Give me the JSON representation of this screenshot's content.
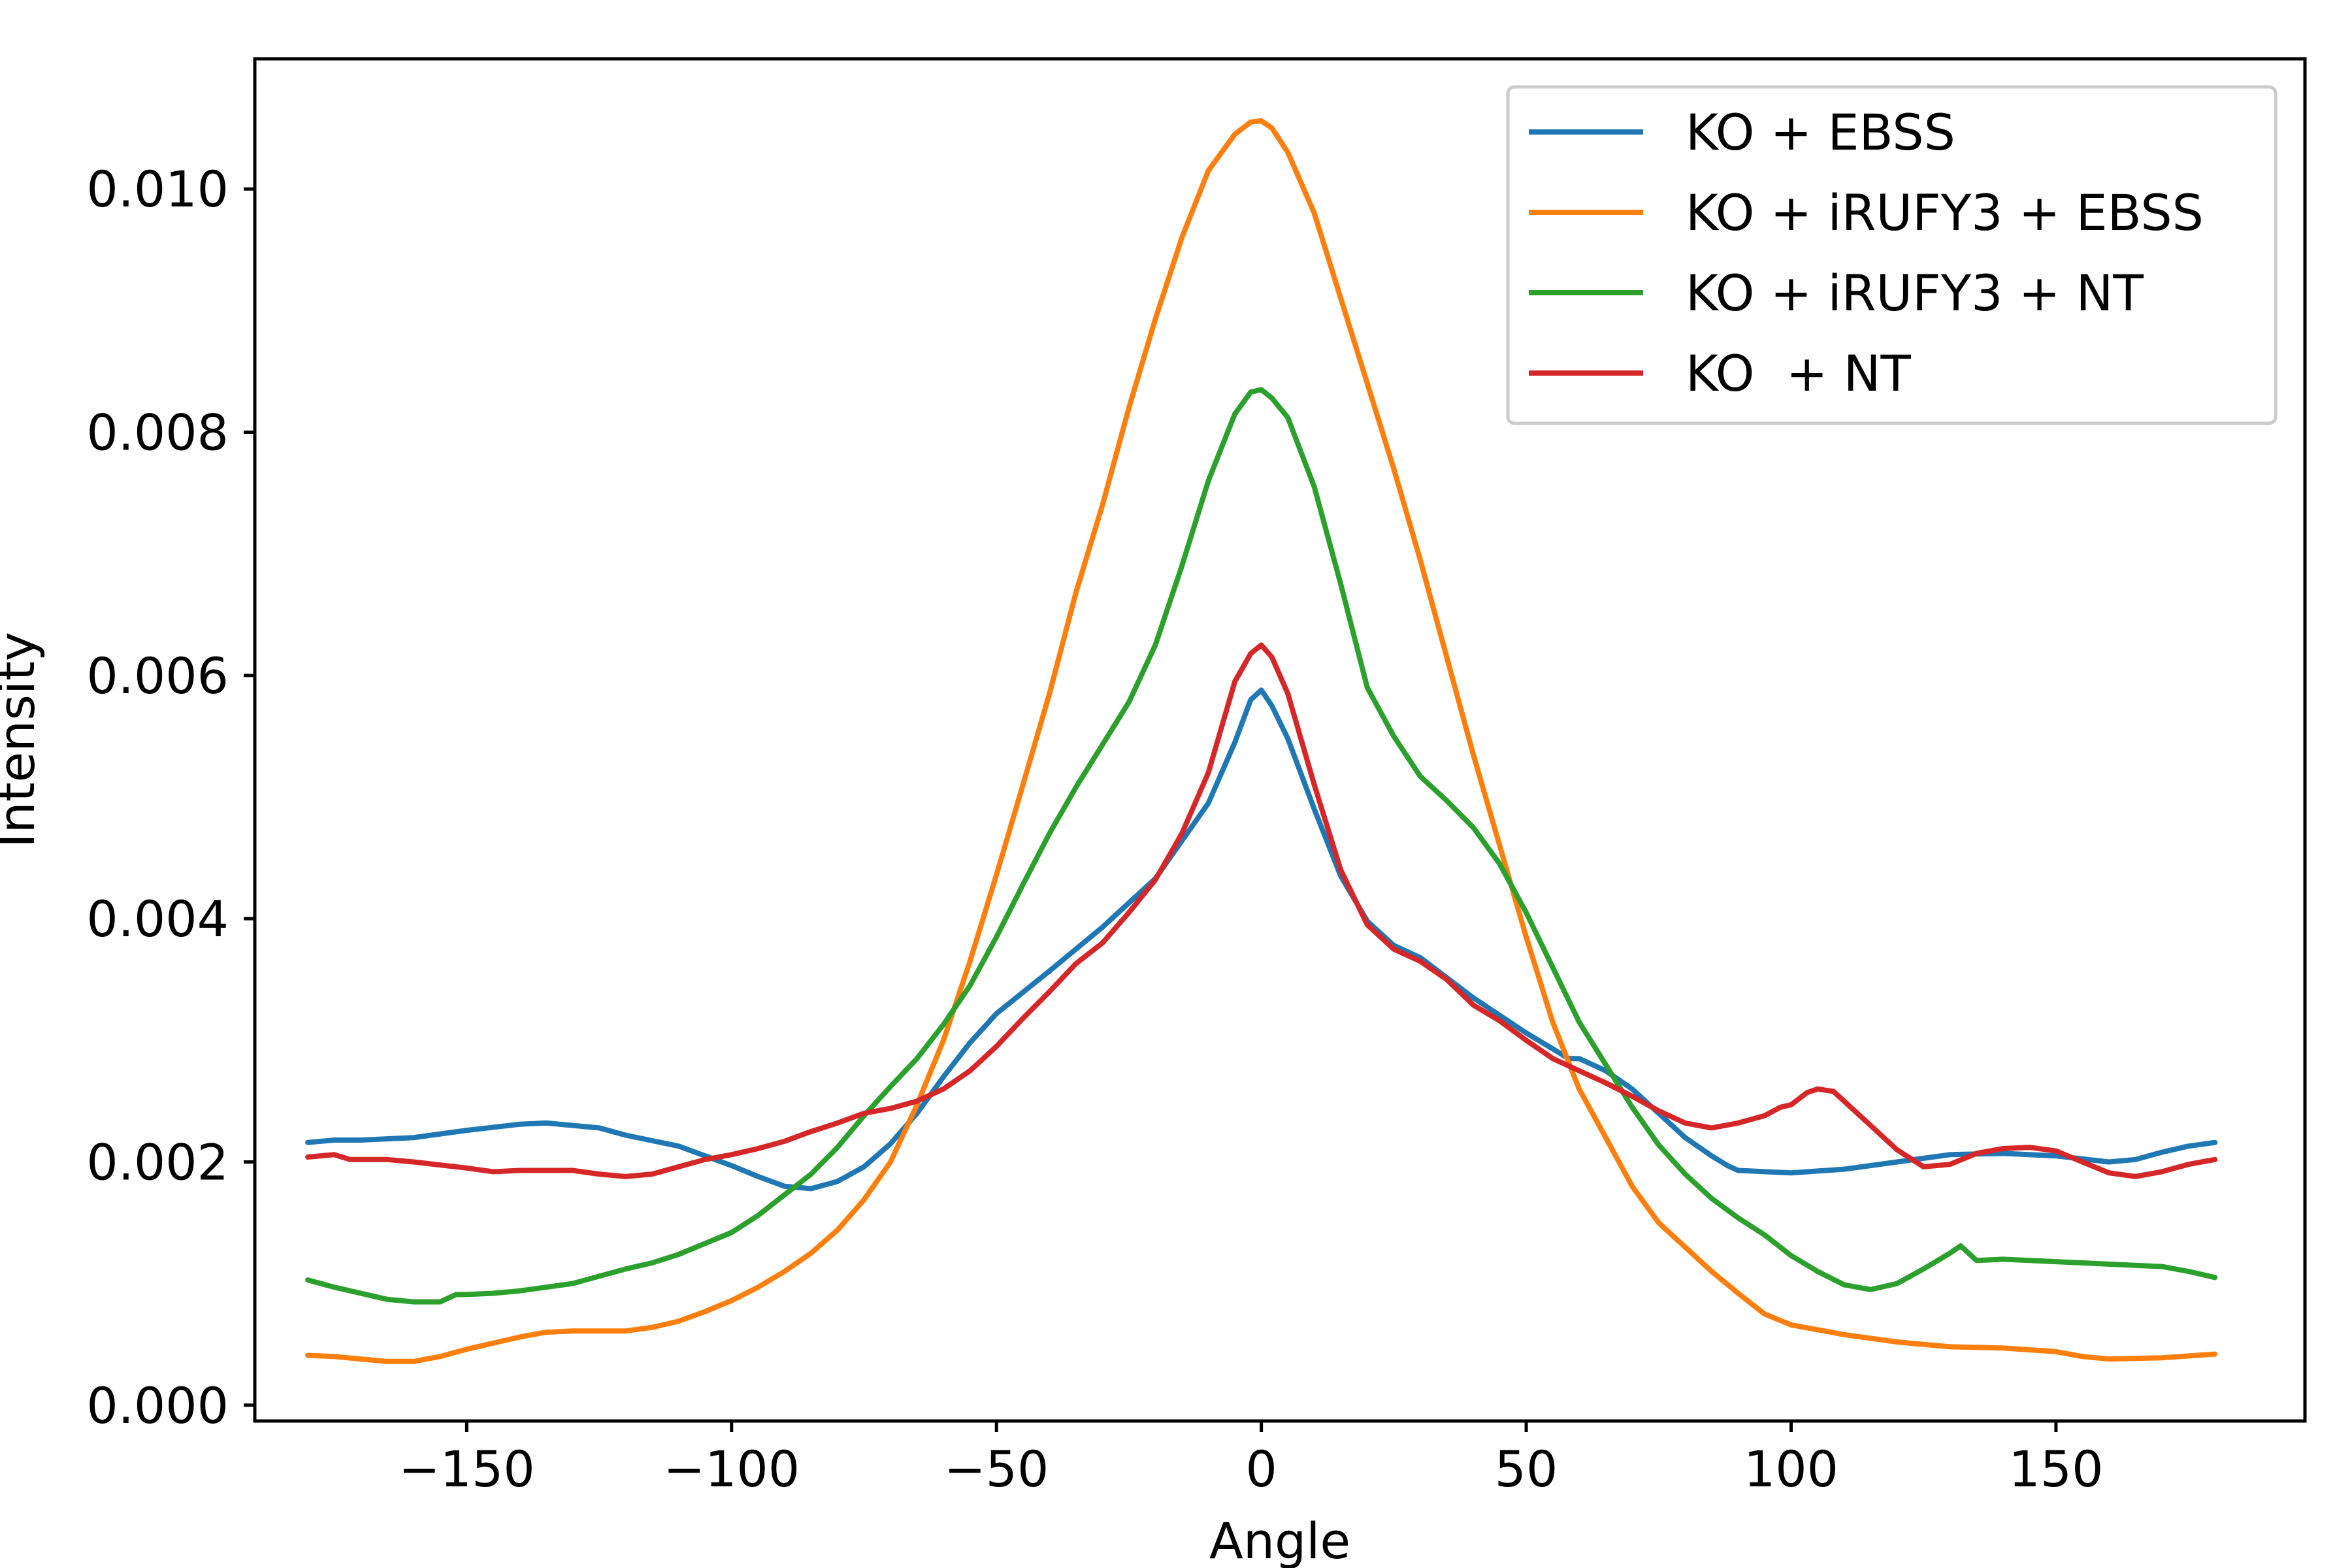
{
  "chart_data": {
    "type": "line",
    "title": "",
    "xlabel": "Angle",
    "ylabel": "Intensity",
    "xlim": [
      -190,
      197
    ],
    "ylim": [
      -0.00013,
      0.01107
    ],
    "x_ticks": [
      -150,
      -100,
      -50,
      0,
      50,
      100,
      150
    ],
    "x_tick_labels": [
      "−150",
      "−100",
      "−50",
      "0",
      "50",
      "100",
      "150"
    ],
    "y_ticks": [
      0.0,
      0.002,
      0.004,
      0.006,
      0.008,
      0.01
    ],
    "y_tick_labels": [
      "0.000",
      "0.002",
      "0.004",
      "0.006",
      "0.008",
      "0.010"
    ],
    "grid": false,
    "legend_position": "top-right",
    "series": [
      {
        "name": "KO + EBSS",
        "color": "#1f77b4",
        "points": [
          [
            -180,
            0.00216
          ],
          [
            -175,
            0.00218
          ],
          [
            -170,
            0.00218
          ],
          [
            -165,
            0.00219
          ],
          [
            -160,
            0.0022
          ],
          [
            -150,
            0.00226
          ],
          [
            -140,
            0.00231
          ],
          [
            -135,
            0.00232
          ],
          [
            -125,
            0.00228
          ],
          [
            -120,
            0.00222
          ],
          [
            -110,
            0.00213
          ],
          [
            -100,
            0.00197
          ],
          [
            -95,
            0.00188
          ],
          [
            -90,
            0.0018
          ],
          [
            -85,
            0.00178
          ],
          [
            -80,
            0.00184
          ],
          [
            -75,
            0.00196
          ],
          [
            -70,
            0.00215
          ],
          [
            -65,
            0.0024
          ],
          [
            -60,
            0.0027
          ],
          [
            -55,
            0.00298
          ],
          [
            -50,
            0.00322
          ],
          [
            -40,
            0.00357
          ],
          [
            -30,
            0.00393
          ],
          [
            -20,
            0.00433
          ],
          [
            -10,
            0.00495
          ],
          [
            -5,
            0.00545
          ],
          [
            -2,
            0.0058
          ],
          [
            0,
            0.00588
          ],
          [
            2,
            0.00575
          ],
          [
            5,
            0.00548
          ],
          [
            10,
            0.0049
          ],
          [
            15,
            0.00435
          ],
          [
            20,
            0.00398
          ],
          [
            25,
            0.00378
          ],
          [
            30,
            0.00368
          ],
          [
            40,
            0.00335
          ],
          [
            50,
            0.00306
          ],
          [
            55,
            0.00293
          ],
          [
            58,
            0.00285
          ],
          [
            60,
            0.00285
          ],
          [
            65,
            0.00275
          ],
          [
            70,
            0.0026
          ],
          [
            75,
            0.0024
          ],
          [
            80,
            0.0022
          ],
          [
            85,
            0.00205
          ],
          [
            88,
            0.00197
          ],
          [
            90,
            0.00193
          ],
          [
            100,
            0.00191
          ],
          [
            110,
            0.00194
          ],
          [
            120,
            0.002
          ],
          [
            130,
            0.00206
          ],
          [
            140,
            0.00207
          ],
          [
            150,
            0.00205
          ],
          [
            160,
            0.002
          ],
          [
            165,
            0.00202
          ],
          [
            170,
            0.00208
          ],
          [
            175,
            0.00213
          ],
          [
            180,
            0.00216
          ]
        ]
      },
      {
        "name": "KO + iRUFY3 + EBSS",
        "color": "#ff7f0e",
        "points": [
          [
            -180,
            0.00041
          ],
          [
            -175,
            0.0004
          ],
          [
            -170,
            0.00038
          ],
          [
            -165,
            0.00036
          ],
          [
            -160,
            0.00036
          ],
          [
            -155,
            0.0004
          ],
          [
            -150,
            0.00046
          ],
          [
            -140,
            0.00056
          ],
          [
            -135,
            0.0006
          ],
          [
            -130,
            0.00061
          ],
          [
            -125,
            0.00061
          ],
          [
            -120,
            0.00061
          ],
          [
            -115,
            0.00064
          ],
          [
            -110,
            0.00069
          ],
          [
            -105,
            0.00077
          ],
          [
            -100,
            0.00086
          ],
          [
            -95,
            0.00097
          ],
          [
            -90,
            0.0011
          ],
          [
            -85,
            0.00125
          ],
          [
            -80,
            0.00144
          ],
          [
            -75,
            0.00169
          ],
          [
            -70,
            0.002
          ],
          [
            -65,
            0.00247
          ],
          [
            -60,
            0.003
          ],
          [
            -55,
            0.00365
          ],
          [
            -50,
            0.00436
          ],
          [
            -45,
            0.0051
          ],
          [
            -40,
            0.00585
          ],
          [
            -35,
            0.00668
          ],
          [
            -30,
            0.0074
          ],
          [
            -25,
            0.0082
          ],
          [
            -20,
            0.00893
          ],
          [
            -15,
            0.0096
          ],
          [
            -10,
            0.01015
          ],
          [
            -5,
            0.01045
          ],
          [
            -2,
            0.01055
          ],
          [
            0,
            0.01056
          ],
          [
            2,
            0.0105
          ],
          [
            5,
            0.0103
          ],
          [
            10,
            0.0098
          ],
          [
            15,
            0.0091
          ],
          [
            20,
            0.0084
          ],
          [
            25,
            0.0077
          ],
          [
            30,
            0.00695
          ],
          [
            35,
            0.00615
          ],
          [
            40,
            0.00535
          ],
          [
            45,
            0.0046
          ],
          [
            50,
            0.00385
          ],
          [
            55,
            0.00315
          ],
          [
            60,
            0.0026
          ],
          [
            65,
            0.0022
          ],
          [
            70,
            0.0018
          ],
          [
            75,
            0.0015
          ],
          [
            80,
            0.0013
          ],
          [
            85,
            0.0011
          ],
          [
            90,
            0.00092
          ],
          [
            95,
            0.00075
          ],
          [
            100,
            0.00066
          ],
          [
            110,
            0.00058
          ],
          [
            120,
            0.00052
          ],
          [
            130,
            0.00048
          ],
          [
            140,
            0.00047
          ],
          [
            150,
            0.00044
          ],
          [
            155,
            0.0004
          ],
          [
            160,
            0.00038
          ],
          [
            170,
            0.00039
          ],
          [
            180,
            0.00042
          ]
        ]
      },
      {
        "name": "KO + iRUFY3 + NT",
        "color": "#2ca02c",
        "points": [
          [
            -180,
            0.00103
          ],
          [
            -175,
            0.00097
          ],
          [
            -170,
            0.00092
          ],
          [
            -165,
            0.00087
          ],
          [
            -160,
            0.00085
          ],
          [
            -155,
            0.00085
          ],
          [
            -152,
            0.00091
          ],
          [
            -150,
            0.00091
          ],
          [
            -145,
            0.00092
          ],
          [
            -140,
            0.00094
          ],
          [
            -130,
            0.001
          ],
          [
            -120,
            0.00112
          ],
          [
            -115,
            0.00117
          ],
          [
            -110,
            0.00124
          ],
          [
            -105,
            0.00133
          ],
          [
            -100,
            0.00142
          ],
          [
            -95,
            0.00156
          ],
          [
            -90,
            0.00173
          ],
          [
            -85,
            0.0019
          ],
          [
            -80,
            0.00212
          ],
          [
            -75,
            0.00238
          ],
          [
            -70,
            0.00262
          ],
          [
            -65,
            0.00285
          ],
          [
            -60,
            0.00313
          ],
          [
            -55,
            0.00345
          ],
          [
            -50,
            0.00385
          ],
          [
            -45,
            0.00428
          ],
          [
            -40,
            0.0047
          ],
          [
            -35,
            0.00508
          ],
          [
            -30,
            0.00543
          ],
          [
            -25,
            0.00578
          ],
          [
            -20,
            0.00625
          ],
          [
            -15,
            0.0069
          ],
          [
            -10,
            0.0076
          ],
          [
            -5,
            0.00815
          ],
          [
            -2,
            0.00833
          ],
          [
            0,
            0.00835
          ],
          [
            2,
            0.00828
          ],
          [
            5,
            0.00812
          ],
          [
            10,
            0.00755
          ],
          [
            15,
            0.00675
          ],
          [
            20,
            0.0059
          ],
          [
            25,
            0.0055
          ],
          [
            30,
            0.00517
          ],
          [
            35,
            0.00497
          ],
          [
            40,
            0.00475
          ],
          [
            45,
            0.00445
          ],
          [
            50,
            0.00405
          ],
          [
            55,
            0.0036
          ],
          [
            60,
            0.00315
          ],
          [
            65,
            0.0028
          ],
          [
            70,
            0.00245
          ],
          [
            75,
            0.00214
          ],
          [
            80,
            0.0019
          ],
          [
            85,
            0.0017
          ],
          [
            90,
            0.00154
          ],
          [
            95,
            0.0014
          ],
          [
            100,
            0.00123
          ],
          [
            105,
            0.0011
          ],
          [
            110,
            0.00099
          ],
          [
            115,
            0.00095
          ],
          [
            120,
            0.001
          ],
          [
            125,
            0.00112
          ],
          [
            130,
            0.00125
          ],
          [
            132,
            0.00131
          ],
          [
            135,
            0.00119
          ],
          [
            140,
            0.0012
          ],
          [
            150,
            0.00118
          ],
          [
            160,
            0.00116
          ],
          [
            170,
            0.00114
          ],
          [
            175,
            0.0011
          ],
          [
            180,
            0.00105
          ]
        ]
      },
      {
        "name": "KO  + NT",
        "color": "#d62728",
        "points": [
          [
            -180,
            0.00204
          ],
          [
            -175,
            0.00206
          ],
          [
            -172,
            0.00202
          ],
          [
            -165,
            0.00202
          ],
          [
            -160,
            0.002
          ],
          [
            -150,
            0.00195
          ],
          [
            -145,
            0.00192
          ],
          [
            -140,
            0.00193
          ],
          [
            -130,
            0.00193
          ],
          [
            -125,
            0.0019
          ],
          [
            -120,
            0.00188
          ],
          [
            -115,
            0.0019
          ],
          [
            -110,
            0.00196
          ],
          [
            -105,
            0.00202
          ],
          [
            -100,
            0.00206
          ],
          [
            -95,
            0.00211
          ],
          [
            -90,
            0.00217
          ],
          [
            -85,
            0.00225
          ],
          [
            -80,
            0.00232
          ],
          [
            -75,
            0.0024
          ],
          [
            -70,
            0.00244
          ],
          [
            -65,
            0.0025
          ],
          [
            -60,
            0.0026
          ],
          [
            -55,
            0.00275
          ],
          [
            -50,
            0.00295
          ],
          [
            -45,
            0.00318
          ],
          [
            -40,
            0.0034
          ],
          [
            -35,
            0.00363
          ],
          [
            -30,
            0.0038
          ],
          [
            -25,
            0.00405
          ],
          [
            -20,
            0.00432
          ],
          [
            -15,
            0.0047
          ],
          [
            -10,
            0.0052
          ],
          [
            -5,
            0.00595
          ],
          [
            -2,
            0.00618
          ],
          [
            0,
            0.00625
          ],
          [
            2,
            0.00615
          ],
          [
            5,
            0.00585
          ],
          [
            10,
            0.0051
          ],
          [
            15,
            0.0044
          ],
          [
            20,
            0.00395
          ],
          [
            25,
            0.00375
          ],
          [
            30,
            0.00365
          ],
          [
            35,
            0.0035
          ],
          [
            40,
            0.00329
          ],
          [
            45,
            0.00316
          ],
          [
            50,
            0.003
          ],
          [
            55,
            0.00285
          ],
          [
            60,
            0.00275
          ],
          [
            65,
            0.00265
          ],
          [
            70,
            0.00254
          ],
          [
            75,
            0.00242
          ],
          [
            80,
            0.00232
          ],
          [
            85,
            0.00228
          ],
          [
            90,
            0.00232
          ],
          [
            95,
            0.00238
          ],
          [
            98,
            0.00245
          ],
          [
            100,
            0.00247
          ],
          [
            103,
            0.00257
          ],
          [
            105,
            0.0026
          ],
          [
            108,
            0.00258
          ],
          [
            110,
            0.0025
          ],
          [
            115,
            0.0023
          ],
          [
            120,
            0.0021
          ],
          [
            125,
            0.00196
          ],
          [
            130,
            0.00198
          ],
          [
            135,
            0.00207
          ],
          [
            140,
            0.00211
          ],
          [
            145,
            0.00212
          ],
          [
            150,
            0.00209
          ],
          [
            155,
            0.002
          ],
          [
            160,
            0.00191
          ],
          [
            165,
            0.00188
          ],
          [
            170,
            0.00192
          ],
          [
            175,
            0.00198
          ],
          [
            180,
            0.00202
          ]
        ]
      }
    ]
  }
}
